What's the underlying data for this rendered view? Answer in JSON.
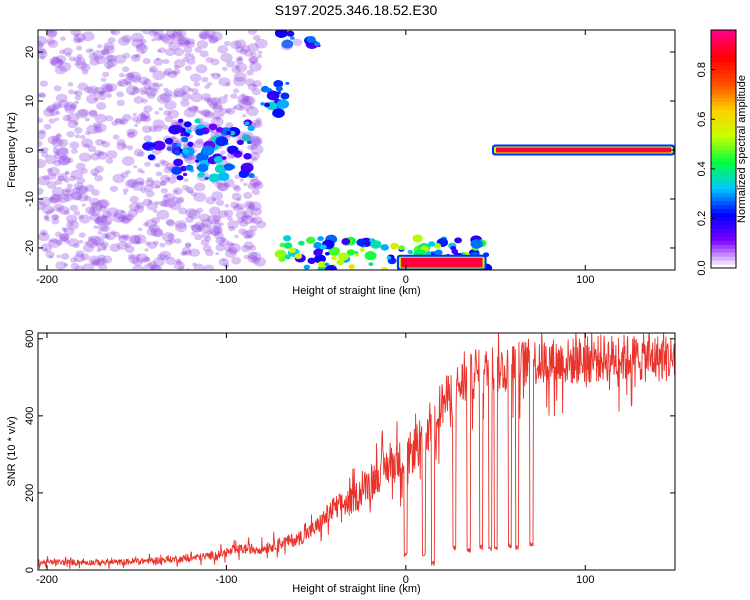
{
  "title": "S197.2025.346.18.52.E30",
  "chart_data": [
    {
      "type": "heatmap",
      "title": "S197.2025.346.18.52.E30",
      "xlabel": "Height of straight line (km)",
      "ylabel": "Frequency (Hz)",
      "xlim": [
        -205,
        150
      ],
      "ylim": [
        -24.5,
        24.5
      ],
      "xticks": [
        -200,
        -100,
        0,
        100
      ],
      "yticks": [
        20,
        10,
        0,
        -10,
        -20
      ],
      "colorbar": {
        "label": "Normalized spectral amplitude",
        "range": [
          0.0,
          0.96
        ],
        "ticks": [
          "0.0",
          "0.2",
          "0.4",
          "0.6",
          "0.8"
        ],
        "colormap": [
          "#ffffff",
          "#7b00ff",
          "#0000ff",
          "#00c8ff",
          "#00ff40",
          "#c8ff00",
          "#ffd000",
          "#ff5000",
          "#ff0000",
          "#ff0080"
        ]
      },
      "features": [
        {
          "x": [
            -205,
            -80
          ],
          "y": [
            -24.5,
            24.5
          ],
          "amplitude": 0.08
        },
        {
          "x": [
            -145,
            -120
          ],
          "y": [
            -2,
            2
          ],
          "amplitude": 0.25
        },
        {
          "x": [
            -130,
            -85
          ],
          "y": [
            -6,
            6
          ],
          "amplitude": 0.3
        },
        {
          "x": [
            -80,
            -65
          ],
          "y": [
            7,
            14
          ],
          "amplitude": 0.3
        },
        {
          "x": [
            -70,
            -45
          ],
          "y": [
            21,
            24.5
          ],
          "amplitude": 0.25
        },
        {
          "x": [
            -70,
            45
          ],
          "y": [
            -24.5,
            -18
          ],
          "amplitude": 0.5
        },
        {
          "x": [
            -5,
            45
          ],
          "y": [
            -24,
            -22
          ],
          "amplitude": 0.9
        },
        {
          "x": [
            48,
            150
          ],
          "y": [
            -0.5,
            0.5
          ],
          "amplitude": 0.9
        }
      ]
    },
    {
      "type": "line",
      "xlabel": "Height of straight line (km)",
      "ylabel": "SNR (10 * v/v)",
      "xlim": [
        -205,
        150
      ],
      "ylim": [
        0,
        615
      ],
      "xticks": [
        -200,
        -100,
        0,
        100
      ],
      "yticks": [
        600,
        400,
        200,
        0
      ],
      "color": "#e8322a",
      "series": [
        {
          "x": [
            -205,
            -180,
            -160,
            -140,
            -120,
            -105,
            -90,
            -80,
            -70,
            -60,
            -50,
            -40,
            -30,
            -20,
            -10,
            0,
            10,
            15,
            20,
            30,
            40,
            50,
            60,
            70,
            80,
            90,
            100,
            110,
            120,
            130,
            140,
            150
          ],
          "values": [
            20,
            20,
            20,
            25,
            30,
            40,
            55,
            55,
            70,
            80,
            110,
            160,
            180,
            230,
            270,
            290,
            340,
            390,
            430,
            480,
            510,
            520,
            530,
            540,
            540,
            540,
            545,
            550,
            550,
            550,
            550,
            550
          ]
        }
      ],
      "dropouts": [
        {
          "x": 0,
          "value": 30
        },
        {
          "x": 10,
          "value": 30
        },
        {
          "x": 15,
          "value": 10
        },
        {
          "x": 27,
          "value": 50
        },
        {
          "x": 35,
          "value": 45
        },
        {
          "x": 42,
          "value": 50
        },
        {
          "x": 47,
          "value": 50
        },
        {
          "x": 50,
          "value": 50
        },
        {
          "x": 58,
          "value": 55
        },
        {
          "x": 62,
          "value": 50
        },
        {
          "x": 70,
          "value": 60
        }
      ]
    }
  ]
}
